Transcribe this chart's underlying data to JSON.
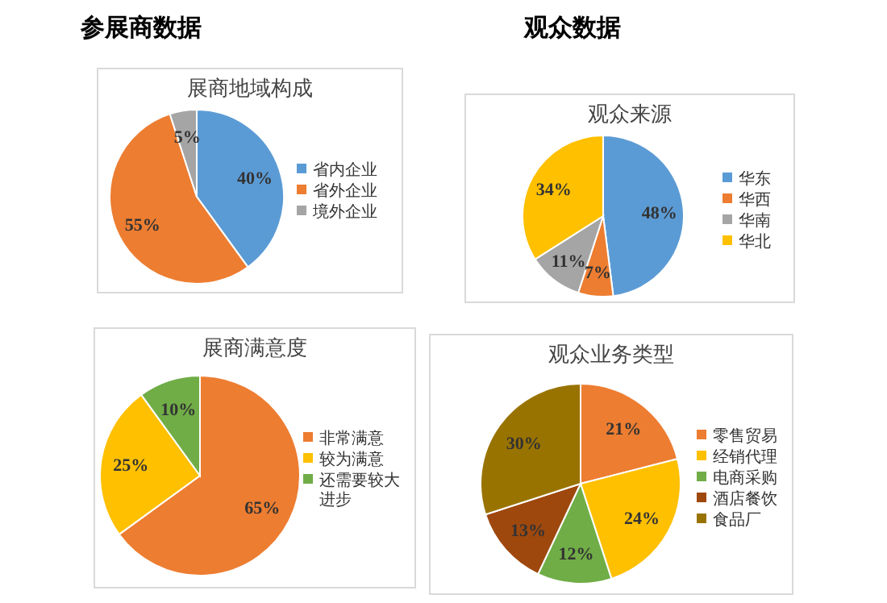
{
  "chart_data": [
    {
      "type": "pie",
      "title": "展商地域构成",
      "annotations": [
        "参展商数据"
      ],
      "categories": [
        "省内企业",
        "省外企业",
        "境外企业"
      ],
      "values": [
        40,
        55,
        5
      ],
      "colors": [
        "#5b9bd5",
        "#ed7d31",
        "#a5a5a5"
      ],
      "value_labels": [
        "40%",
        "55%",
        "5%"
      ],
      "legend": "right"
    },
    {
      "type": "pie",
      "title": "观众来源",
      "annotations": [
        "观众数据"
      ],
      "categories": [
        "华东",
        "华西",
        "华南",
        "华北"
      ],
      "values": [
        48,
        7,
        11,
        34
      ],
      "colors": [
        "#5b9bd5",
        "#ed7d31",
        "#a5a5a5",
        "#ffc000"
      ],
      "value_labels": [
        "48%",
        "7%",
        "11%",
        "34%"
      ],
      "legend": "right"
    },
    {
      "type": "pie",
      "title": "展商满意度",
      "categories": [
        "非常满意",
        "较为满意",
        "还需要较大进步"
      ],
      "values": [
        65,
        25,
        10
      ],
      "colors": [
        "#ed7d31",
        "#ffc000",
        "#70ad47"
      ],
      "value_labels": [
        "65%",
        "25%",
        "10%"
      ],
      "legend": "right"
    },
    {
      "type": "pie",
      "title": "观众业务类型",
      "categories": [
        "零售贸易",
        "经销代理",
        "电商采购",
        "酒店餐饮",
        "食品厂"
      ],
      "values": [
        21,
        24,
        12,
        13,
        30
      ],
      "colors": [
        "#ed7d31",
        "#ffc000",
        "#70ad47",
        "#9e480e",
        "#997300"
      ],
      "value_labels": [
        "21%",
        "24%",
        "12%",
        "13%",
        "30%"
      ],
      "legend": "right"
    }
  ]
}
